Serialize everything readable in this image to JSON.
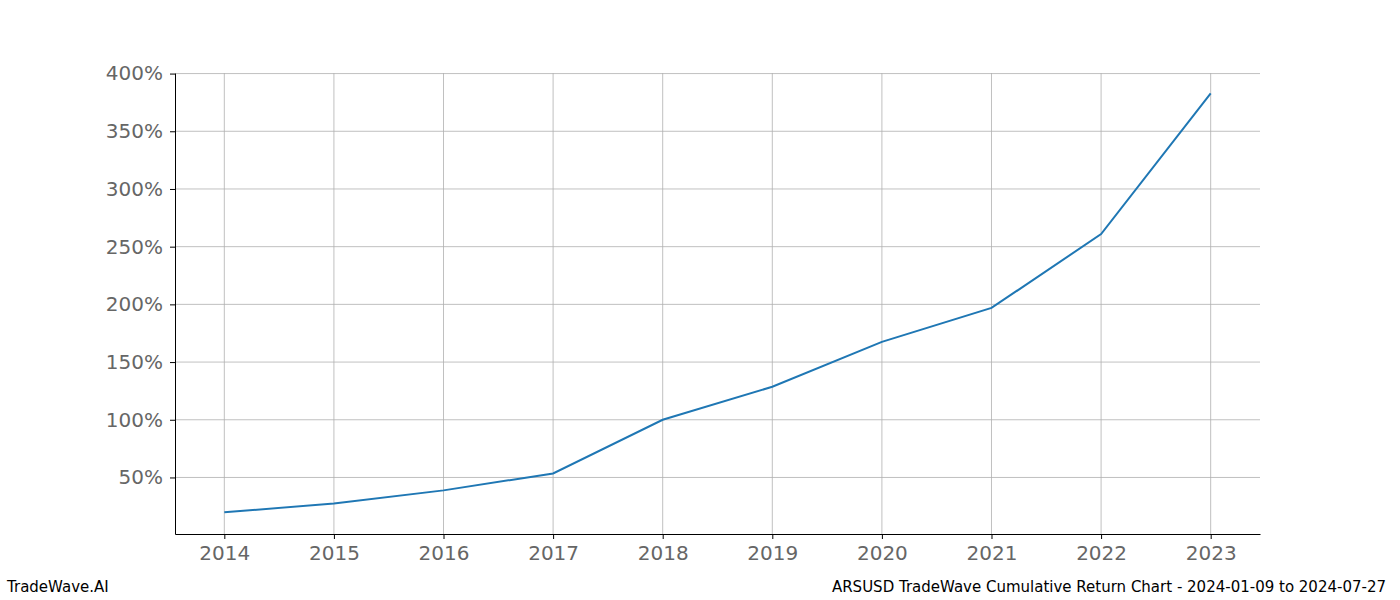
{
  "chart_data": {
    "type": "line",
    "title": "ARSUSD TradeWave Cumulative Return Chart - 2024-01-09 to 2024-07-27",
    "annotations": [
      "TradeWave.AI"
    ],
    "x": [
      2014,
      2015,
      2016,
      2017,
      2018,
      2019,
      2020,
      2021,
      2022,
      2023
    ],
    "values": [
      19.8,
      27.5,
      38.8,
      53.5,
      100,
      128.6,
      167.5,
      196.9,
      260.9,
      382.8
    ],
    "color": "#1f77b4",
    "xlim": [
      2013.55,
      2023.45
    ],
    "xticks": [
      2014,
      2015,
      2016,
      2017,
      2018,
      2019,
      2020,
      2021,
      2022,
      2023
    ],
    "ylim": [
      1,
      400.5
    ],
    "yticks": [
      {
        "value": 50,
        "label": "50%"
      },
      {
        "value": 100,
        "label": "100%"
      },
      {
        "value": 150,
        "label": "150%"
      },
      {
        "value": 200,
        "label": "200%"
      },
      {
        "value": 250,
        "label": "250%"
      },
      {
        "value": 300,
        "label": "300%"
      },
      {
        "value": 350,
        "label": "350%"
      },
      {
        "value": 400,
        "label": "400%"
      }
    ],
    "grid": true
  }
}
